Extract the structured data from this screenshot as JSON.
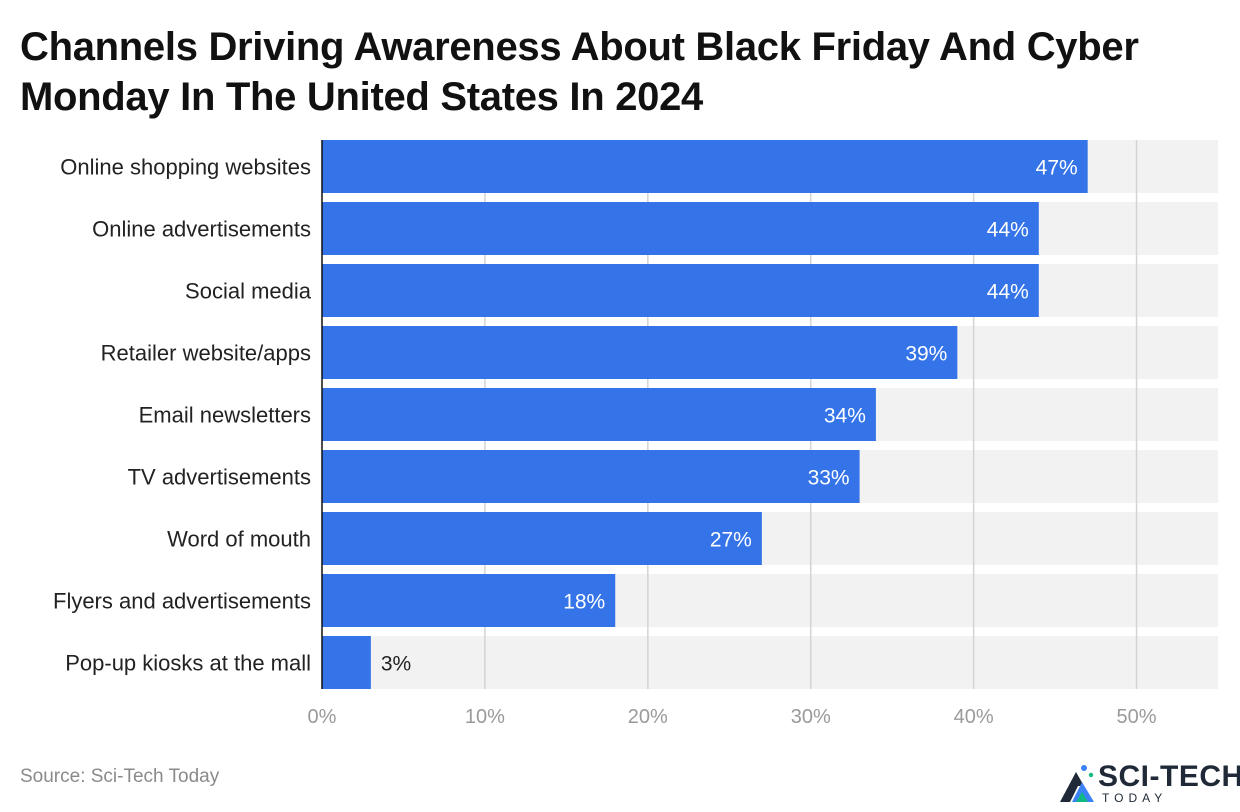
{
  "chart_data": {
    "type": "bar",
    "orientation": "horizontal",
    "title": "Channels Driving Awareness About Black Friday And Cyber Monday In The United States In 2024",
    "categories": [
      "Online shopping websites",
      "Online advertisements",
      "Social media",
      "Retailer website/apps",
      "Email newsletters",
      "TV advertisements",
      "Word of mouth",
      "Flyers and advertisements",
      "Pop-up kiosks at the mall"
    ],
    "values": [
      47,
      44,
      44,
      39,
      34,
      33,
      27,
      18,
      3
    ],
    "value_labels": [
      "47%",
      "44%",
      "44%",
      "39%",
      "34%",
      "33%",
      "27%",
      "18%",
      "3%"
    ],
    "xlim": [
      0,
      55
    ],
    "ticks": [
      0,
      10,
      20,
      30,
      40,
      50
    ],
    "tick_labels": [
      "0%",
      "10%",
      "20%",
      "30%",
      "40%",
      "50%"
    ],
    "xlabel": "",
    "ylabel": "",
    "grid": true,
    "bar_color": "#3474E8",
    "track_color": "#F2F2F2"
  },
  "source": "Source: Sci-Tech Today",
  "logo": {
    "name": "SCI-TECH",
    "sub": "TODAY",
    "icon": "sci-tech-logo-icon"
  }
}
